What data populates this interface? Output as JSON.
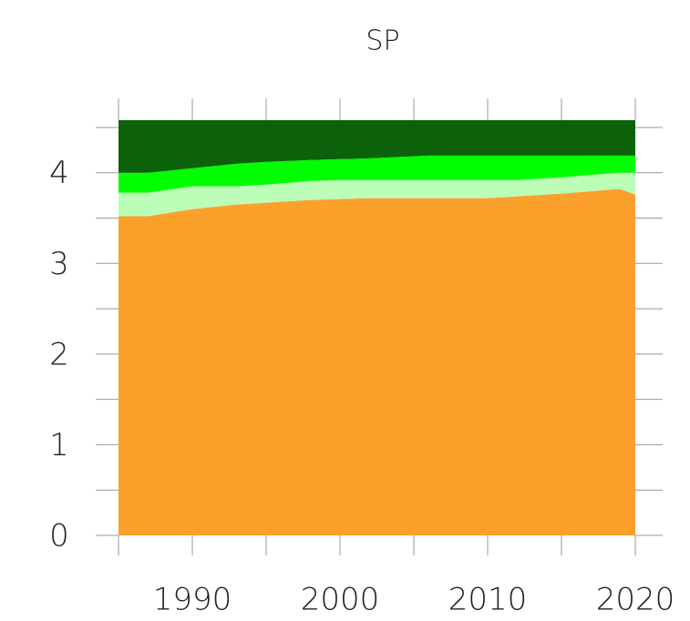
{
  "chart_data": {
    "type": "stacked_area",
    "title": "SP",
    "x": [
      1985,
      1987,
      1990,
      1993,
      1995,
      1998,
      2000,
      2002,
      2006,
      2010,
      2012,
      2015,
      2018,
      2019,
      2020
    ],
    "series": [
      {
        "color": "#fba02b",
        "values": [
          3.52,
          3.52,
          3.6,
          3.65,
          3.67,
          3.7,
          3.71,
          3.72,
          3.72,
          3.72,
          3.74,
          3.77,
          3.81,
          3.82,
          3.76
        ]
      },
      {
        "color": "#bcfdb8",
        "values": [
          0.26,
          0.26,
          0.25,
          0.2,
          0.2,
          0.21,
          0.21,
          0.2,
          0.2,
          0.2,
          0.18,
          0.18,
          0.18,
          0.18,
          0.24
        ]
      },
      {
        "color": "#00ff00",
        "values": [
          0.22,
          0.22,
          0.2,
          0.25,
          0.25,
          0.23,
          0.23,
          0.24,
          0.27,
          0.27,
          0.27,
          0.24,
          0.2,
          0.19,
          0.19
        ]
      },
      {
        "color": "#0b620b",
        "values": [
          0.58,
          0.58,
          0.53,
          0.48,
          0.46,
          0.44,
          0.43,
          0.42,
          0.39,
          0.39,
          0.39,
          0.39,
          0.39,
          0.39,
          0.39
        ]
      }
    ],
    "xlim": [
      1985,
      2020
    ],
    "xticks": [
      1990,
      2000,
      2010,
      2020
    ],
    "xminorticks": [
      1985,
      1995,
      2005,
      2015
    ],
    "ylim": [
      0,
      4.58
    ],
    "yticks": [
      0,
      1,
      2,
      3,
      4
    ],
    "yminorticks": [
      0.5,
      1.5,
      2.5,
      3.5,
      4.5
    ]
  }
}
